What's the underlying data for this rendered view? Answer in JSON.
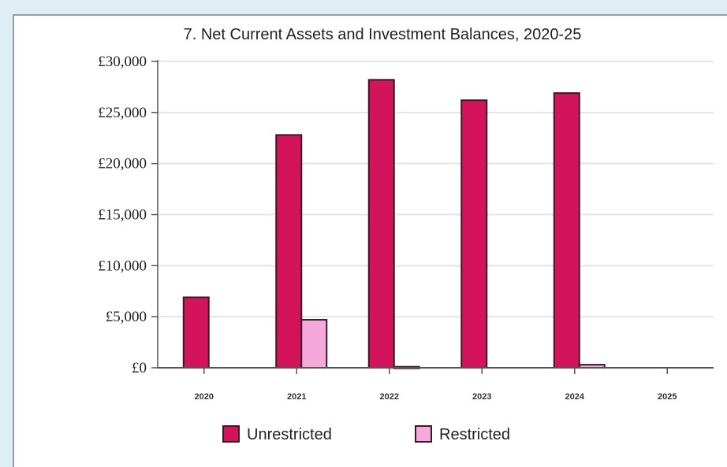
{
  "chart_data": {
    "type": "bar",
    "title": "7. Net Current Assets and Investment Balances, 2020-25",
    "xlabel": "",
    "ylabel": "",
    "categories": [
      "2020",
      "2021",
      "2022",
      "2023",
      "2024",
      "2025"
    ],
    "y_ticks": [
      "£0",
      "£5,000",
      "£10,000",
      "£15,000",
      "£20,000",
      "£25,000",
      "£30,000"
    ],
    "ylim": [
      0,
      30000
    ],
    "grid": true,
    "legend_position": "bottom",
    "series": [
      {
        "name": "Unrestricted",
        "color": "#d4145a",
        "values": [
          6900,
          22800,
          28200,
          26200,
          26900,
          0
        ]
      },
      {
        "name": "Restricted",
        "color": "#f4a8dc",
        "values": [
          0,
          4700,
          100,
          0,
          300,
          0
        ]
      }
    ]
  }
}
